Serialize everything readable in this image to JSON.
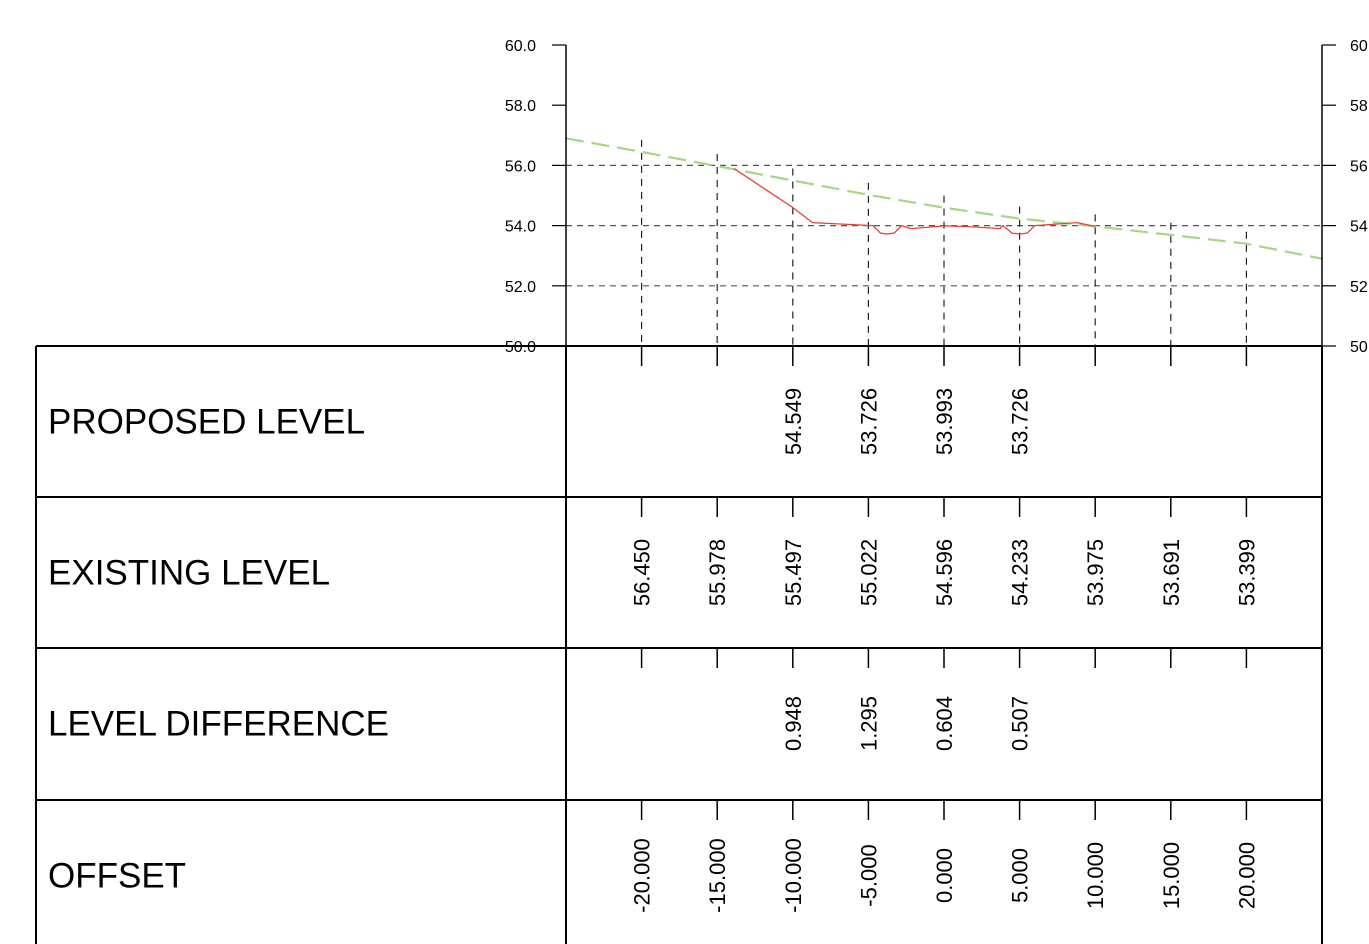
{
  "chart_data": {
    "type": "line",
    "y_axis": {
      "range": [
        50,
        60
      ],
      "left_ticks": [
        "60.0",
        "58.0",
        "56.0",
        "54.0",
        "52.0",
        "50.0"
      ],
      "right_ticks": [
        "60",
        "58.0",
        "56.0",
        "54.0",
        "52.0",
        "50"
      ],
      "tick_values": [
        60,
        58,
        56,
        54,
        52,
        50
      ],
      "gridlines": [
        56,
        54,
        52
      ]
    },
    "x_axis": {
      "range": [
        -25,
        25
      ]
    },
    "stations": [
      -20,
      -15,
      -10,
      -5,
      0,
      5,
      10,
      15,
      20
    ],
    "series": [
      {
        "color": "#a6d785",
        "style": "dashed",
        "points": [
          [
            -25,
            56.9
          ],
          [
            -20,
            56.45
          ],
          [
            -15,
            55.978
          ],
          [
            -10,
            55.497
          ],
          [
            -5,
            55.022
          ],
          [
            0,
            54.596
          ],
          [
            5,
            54.233
          ],
          [
            10,
            53.975
          ],
          [
            15,
            53.691
          ],
          [
            20,
            53.399
          ],
          [
            25,
            52.9
          ]
        ]
      },
      {
        "color": "#e8413c",
        "style": "solid",
        "points": [
          [
            -13.9,
            55.9
          ],
          [
            -10,
            54.6
          ],
          [
            -8.7,
            54.1
          ],
          [
            -4.7,
            54.0
          ],
          [
            -4.2,
            53.75
          ],
          [
            -3.8,
            53.72
          ],
          [
            -3.3,
            53.75
          ],
          [
            -2.8,
            54.0
          ],
          [
            -2.5,
            53.95
          ],
          [
            -2.2,
            53.9
          ],
          [
            0,
            53.99
          ],
          [
            1.5,
            53.97
          ],
          [
            3.7,
            53.9
          ],
          [
            3.9,
            54.0
          ],
          [
            4.5,
            53.75
          ],
          [
            5.0,
            53.72
          ],
          [
            5.5,
            53.75
          ],
          [
            6.0,
            54.0
          ],
          [
            8.8,
            54.1
          ],
          [
            10,
            53.975
          ]
        ]
      }
    ],
    "table_rows": [
      {
        "label": "PROPOSED LEVEL",
        "values": [
          "",
          "",
          "54.549",
          "53.726",
          "53.993",
          "53.726",
          "",
          "",
          ""
        ]
      },
      {
        "label": "EXISTING LEVEL",
        "values": [
          "56.450",
          "55.978",
          "55.497",
          "55.022",
          "54.596",
          "54.233",
          "53.975",
          "53.691",
          "53.399"
        ]
      },
      {
        "label": "LEVEL DIFFERENCE",
        "values": [
          "",
          "",
          "0.948",
          "1.295",
          "0.604",
          "0.507",
          "",
          "",
          ""
        ]
      },
      {
        "label": "OFFSET",
        "values": [
          "-20.000",
          "-15.000",
          "-10.000",
          "-5.000",
          "0.000",
          "5.000",
          "10.000",
          "15.000",
          "20.000"
        ]
      }
    ]
  }
}
